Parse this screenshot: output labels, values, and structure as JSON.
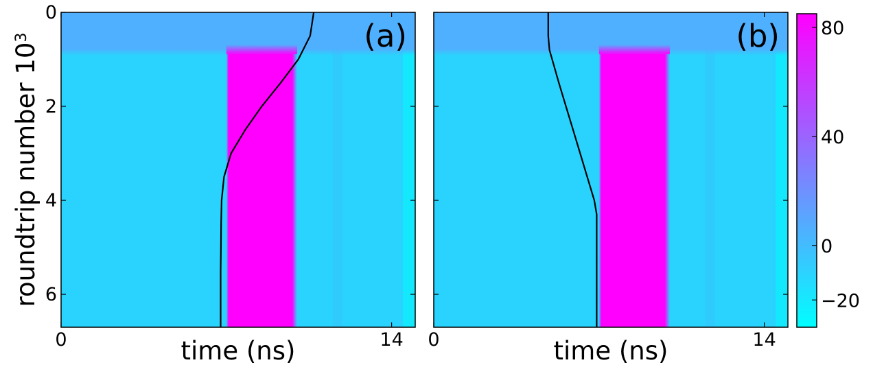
{
  "chart_data": [
    {
      "type": "heatmap",
      "panel_label": "(a)",
      "xlabel": "time (ns)",
      "ylabel": "roundtrip number 10",
      "ylabel_superscript": "3",
      "x_tick_labels": [
        "0",
        "14"
      ],
      "x_ticks": [
        0,
        14
      ],
      "y_tick_labels": [
        "0",
        "2",
        "4",
        "6"
      ],
      "y_ticks": [
        0,
        2,
        4,
        6
      ],
      "xlim": [
        0,
        15
      ],
      "ylim": [
        6.7,
        0
      ],
      "grid": false,
      "regions": [
        {
          "x": [
            0,
            15
          ],
          "y": [
            0,
            0.8
          ],
          "value": 10
        },
        {
          "x": [
            7.0,
            10.0
          ],
          "y": [
            0.8,
            6.7
          ],
          "value": 80
        },
        {
          "x": [
            0,
            15
          ],
          "y": [
            0.8,
            6.7
          ],
          "value": -15
        }
      ],
      "trajectory": {
        "y": [
          0,
          0.5,
          1.0,
          1.5,
          2.0,
          2.5,
          3.0,
          3.5,
          4.0,
          4.5,
          5.0,
          5.5,
          6.0,
          6.7
        ],
        "x": [
          10.7,
          10.55,
          10.05,
          9.3,
          8.5,
          7.8,
          7.2,
          6.9,
          6.8,
          6.78,
          6.77,
          6.76,
          6.76,
          6.76
        ]
      }
    },
    {
      "type": "heatmap",
      "panel_label": "(b)",
      "xlabel": "time (ns)",
      "x_tick_labels": [
        "0",
        "14"
      ],
      "x_ticks": [
        0,
        14
      ],
      "xlim": [
        0,
        15
      ],
      "ylim": [
        6.7,
        0
      ],
      "grid": false,
      "regions": [
        {
          "x": [
            0,
            15
          ],
          "y": [
            0,
            0.8
          ],
          "value": 10
        },
        {
          "x": [
            7.0,
            10.0
          ],
          "y": [
            0.8,
            6.7
          ],
          "value": 80
        },
        {
          "x": [
            0,
            15
          ],
          "y": [
            0.8,
            6.7
          ],
          "value": -15
        }
      ],
      "trajectory": {
        "y": [
          0,
          0.5,
          0.8,
          1.5,
          2.0,
          2.5,
          3.0,
          3.5,
          4.0,
          4.3,
          5.0,
          5.5,
          6.0,
          6.7
        ],
        "x": [
          4.85,
          4.85,
          4.9,
          5.3,
          5.6,
          5.9,
          6.2,
          6.5,
          6.8,
          6.9,
          6.9,
          6.9,
          6.9,
          6.9
        ]
      }
    }
  ],
  "colorbar": {
    "tick_labels": [
      "80",
      "40",
      "0",
      "−20"
    ],
    "ticks": [
      80,
      40,
      0,
      -20
    ],
    "range": [
      -30,
      85
    ],
    "colors": [
      "#00ffff",
      "#ff00ff"
    ]
  }
}
